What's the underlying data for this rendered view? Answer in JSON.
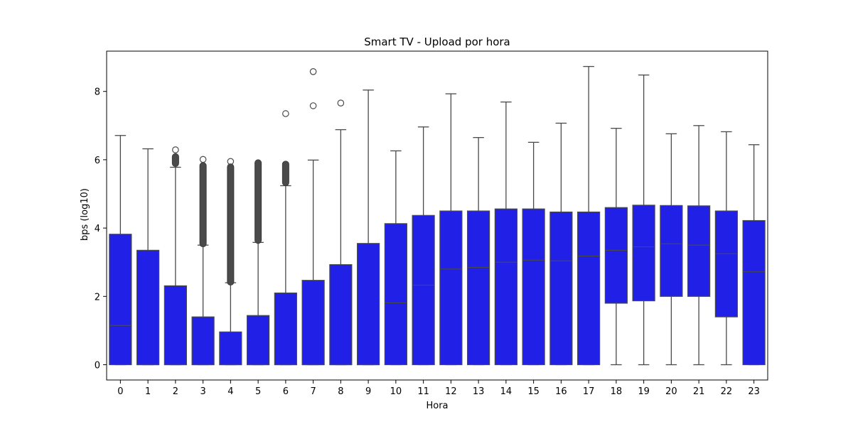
{
  "chart_data": {
    "type": "box",
    "title": "Smart TV - Upload por hora",
    "xlabel": "Hora",
    "ylabel": "bps (log10)",
    "ylim": [
      -0.45,
      9.2
    ],
    "yticks": [
      0,
      2,
      4,
      6,
      8
    ],
    "grid": false,
    "box_color": "#2020E6",
    "line_color": "#4a4a4a",
    "categories": [
      "0",
      "1",
      "2",
      "3",
      "4",
      "5",
      "6",
      "7",
      "8",
      "9",
      "10",
      "11",
      "12",
      "13",
      "14",
      "15",
      "16",
      "17",
      "18",
      "19",
      "20",
      "21",
      "22",
      "23"
    ],
    "boxes": [
      {
        "q1": 0,
        "median": 1.15,
        "q3": 3.82,
        "whisker_low": 0,
        "whisker_high": 6.71,
        "outliers": [],
        "dense_outliers": null
      },
      {
        "q1": 0,
        "median": 0,
        "q3": 3.35,
        "whisker_low": 0,
        "whisker_high": 6.32,
        "outliers": [],
        "dense_outliers": null
      },
      {
        "q1": 0,
        "median": 0,
        "q3": 2.31,
        "whisker_low": 0,
        "whisker_high": 5.78,
        "outliers": [
          6.29
        ],
        "dense_outliers": [
          5.8,
          6.18
        ]
      },
      {
        "q1": 0,
        "median": 0,
        "q3": 1.4,
        "whisker_low": 0,
        "whisker_high": 3.5,
        "outliers": [
          6.01
        ],
        "dense_outliers": [
          3.45,
          5.92
        ]
      },
      {
        "q1": 0,
        "median": 0,
        "q3": 0.96,
        "whisker_low": 0,
        "whisker_high": 2.4,
        "outliers": [
          5.95
        ],
        "dense_outliers": [
          2.33,
          5.88
        ]
      },
      {
        "q1": 0,
        "median": 0,
        "q3": 1.44,
        "whisker_low": 0,
        "whisker_high": 3.58,
        "outliers": [],
        "dense_outliers": [
          3.55,
          6.0
        ]
      },
      {
        "q1": 0,
        "median": 0,
        "q3": 2.1,
        "whisker_low": 0,
        "whisker_high": 5.24,
        "outliers": [
          7.35
        ],
        "dense_outliers": [
          5.24,
          5.96
        ]
      },
      {
        "q1": 0,
        "median": 0,
        "q3": 2.47,
        "whisker_low": 0,
        "whisker_high": 5.99,
        "outliers": [
          7.58,
          8.58
        ],
        "dense_outliers": null
      },
      {
        "q1": 0,
        "median": 0,
        "q3": 2.93,
        "whisker_low": 0,
        "whisker_high": 6.88,
        "outliers": [
          7.66
        ],
        "dense_outliers": null
      },
      {
        "q1": 0,
        "median": 0,
        "q3": 3.55,
        "whisker_low": 0,
        "whisker_high": 8.04,
        "outliers": [],
        "dense_outliers": null
      },
      {
        "q1": 0,
        "median": 1.81,
        "q3": 4.13,
        "whisker_low": 0,
        "whisker_high": 6.26,
        "outliers": [],
        "dense_outliers": null
      },
      {
        "q1": 0,
        "median": 2.33,
        "q3": 4.37,
        "whisker_low": 0,
        "whisker_high": 6.96,
        "outliers": [],
        "dense_outliers": null
      },
      {
        "q1": 0,
        "median": 2.8,
        "q3": 4.5,
        "whisker_low": 0,
        "whisker_high": 7.93,
        "outliers": [],
        "dense_outliers": null
      },
      {
        "q1": 0,
        "median": 2.85,
        "q3": 4.5,
        "whisker_low": 0,
        "whisker_high": 6.65,
        "outliers": [],
        "dense_outliers": null
      },
      {
        "q1": 0,
        "median": 3.0,
        "q3": 4.56,
        "whisker_low": 0,
        "whisker_high": 7.69,
        "outliers": [],
        "dense_outliers": null
      },
      {
        "q1": 0,
        "median": 3.06,
        "q3": 4.56,
        "whisker_low": 0,
        "whisker_high": 6.51,
        "outliers": [],
        "dense_outliers": null
      },
      {
        "q1": 0,
        "median": 3.04,
        "q3": 4.47,
        "whisker_low": 0,
        "whisker_high": 7.07,
        "outliers": [],
        "dense_outliers": null
      },
      {
        "q1": 0,
        "median": 3.18,
        "q3": 4.47,
        "whisker_low": 0,
        "whisker_high": 8.73,
        "outliers": [],
        "dense_outliers": null
      },
      {
        "q1": 1.8,
        "median": 3.35,
        "q3": 4.6,
        "whisker_low": 0,
        "whisker_high": 6.92,
        "outliers": [],
        "dense_outliers": null
      },
      {
        "q1": 1.87,
        "median": 3.45,
        "q3": 4.67,
        "whisker_low": 0,
        "whisker_high": 8.48,
        "outliers": [],
        "dense_outliers": null
      },
      {
        "q1": 2.0,
        "median": 3.54,
        "q3": 4.66,
        "whisker_low": 0,
        "whisker_high": 6.76,
        "outliers": [],
        "dense_outliers": null
      },
      {
        "q1": 2.0,
        "median": 3.5,
        "q3": 4.65,
        "whisker_low": 0,
        "whisker_high": 7.0,
        "outliers": [],
        "dense_outliers": null
      },
      {
        "q1": 1.4,
        "median": 3.25,
        "q3": 4.5,
        "whisker_low": 0,
        "whisker_high": 6.82,
        "outliers": [],
        "dense_outliers": null
      },
      {
        "q1": 0,
        "median": 2.72,
        "q3": 4.22,
        "whisker_low": 0,
        "whisker_high": 6.44,
        "outliers": [],
        "dense_outliers": null
      }
    ]
  }
}
